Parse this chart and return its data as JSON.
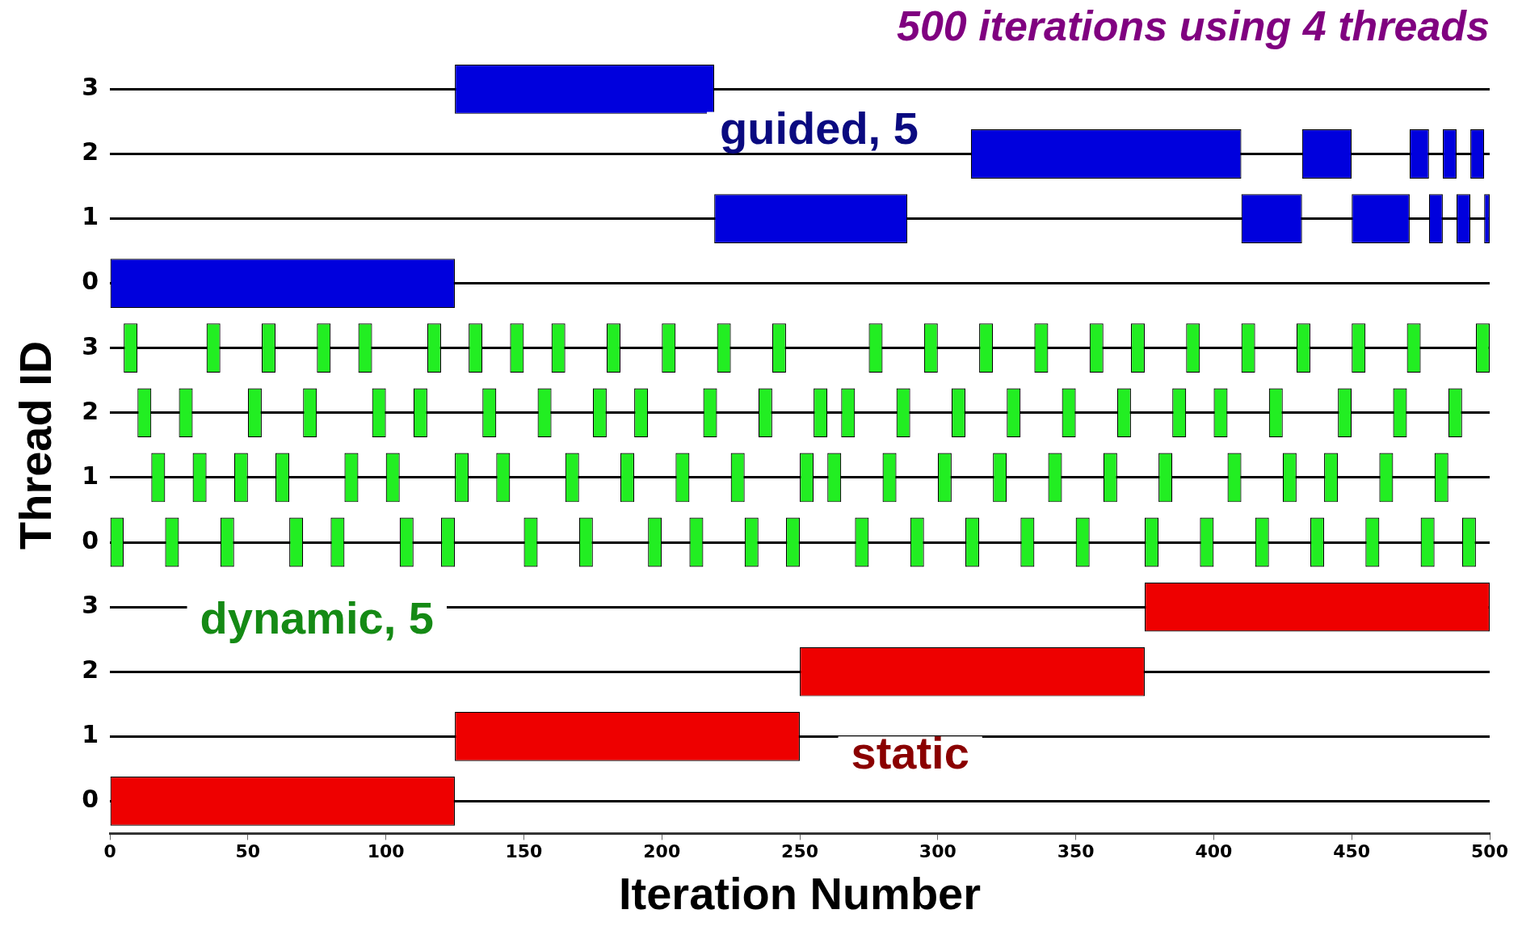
{
  "chart_data": {
    "type": "bar",
    "orientation": "horizontal",
    "title": "500 iterations using 4 threads",
    "xlabel": "Iteration Number",
    "ylabel": "Thread ID",
    "categories": [
      "3",
      "2",
      "1",
      "0",
      "3",
      "2",
      "1",
      "0",
      "3",
      "2",
      "1",
      "0"
    ],
    "xlim": [
      0,
      500
    ],
    "xticks": [
      0,
      50,
      100,
      150,
      200,
      250,
      300,
      350,
      400,
      450,
      500
    ],
    "grid": "y",
    "annotations": [
      "guided, 5",
      "dynamic, 5",
      "static"
    ],
    "series": [
      {
        "color": "#0000dd",
        "base": [
          125,
          null,
          219,
          0,
          null,
          null,
          null,
          null,
          null,
          null,
          null,
          null
        ],
        "values": [
          94,
          null,
          70,
          125,
          null,
          null,
          null,
          null,
          null,
          null,
          null,
          null
        ]
      },
      {
        "color": "#0000dd",
        "base": [
          null,
          312,
          410,
          null,
          null,
          null,
          null,
          null,
          null,
          null,
          null,
          null
        ],
        "values": [
          null,
          98,
          22,
          null,
          null,
          null,
          null,
          null,
          null,
          null,
          null,
          null
        ]
      },
      {
        "color": "#0000dd",
        "base": [
          null,
          432,
          450,
          null,
          null,
          null,
          null,
          null,
          null,
          null,
          null,
          null
        ],
        "values": [
          null,
          18,
          21,
          null,
          null,
          null,
          null,
          null,
          null,
          null,
          null,
          null
        ]
      },
      {
        "color": "#0000dd",
        "base": [
          null,
          471,
          478,
          null,
          null,
          null,
          null,
          null,
          null,
          null,
          null,
          null
        ],
        "values": [
          null,
          7,
          5,
          null,
          null,
          null,
          null,
          null,
          null,
          null,
          null,
          null
        ]
      },
      {
        "color": "#0000dd",
        "base": [
          null,
          483,
          488,
          null,
          null,
          null,
          null,
          null,
          null,
          null,
          null,
          null
        ],
        "values": [
          null,
          5,
          5,
          null,
          null,
          null,
          null,
          null,
          null,
          null,
          null,
          null
        ]
      },
      {
        "color": "#0000dd",
        "base": [
          null,
          493,
          498,
          null,
          null,
          null,
          null,
          null,
          null,
          null,
          null,
          null
        ],
        "values": [
          null,
          5,
          2,
          null,
          null,
          null,
          null,
          null,
          null,
          null,
          null,
          null
        ]
      },
      {
        "color": "#22ee22",
        "base": [
          null,
          null,
          null,
          null,
          5,
          10,
          15,
          0,
          null,
          null,
          null,
          null
        ],
        "values": [
          null,
          null,
          null,
          null,
          5,
          5,
          5,
          5,
          null,
          null,
          null,
          null
        ]
      },
      {
        "color": "#22ee22",
        "base": [
          null,
          null,
          null,
          null,
          35,
          25,
          30,
          20,
          null,
          null,
          null,
          null
        ],
        "values": [
          null,
          null,
          null,
          null,
          5,
          5,
          5,
          5,
          null,
          null,
          null,
          null
        ]
      },
      {
        "color": "#22ee22",
        "base": [
          null,
          null,
          null,
          null,
          55,
          50,
          45,
          40,
          null,
          null,
          null,
          null
        ],
        "values": [
          null,
          null,
          null,
          null,
          5,
          5,
          5,
          5,
          null,
          null,
          null,
          null
        ]
      },
      {
        "color": "#22ee22",
        "base": [
          null,
          null,
          null,
          null,
          75,
          70,
          60,
          65,
          null,
          null,
          null,
          null
        ],
        "values": [
          null,
          null,
          null,
          null,
          5,
          5,
          5,
          5,
          null,
          null,
          null,
          null
        ]
      },
      {
        "color": "#22ee22",
        "base": [
          null,
          null,
          null,
          null,
          90,
          95,
          85,
          80,
          null,
          null,
          null,
          null
        ],
        "values": [
          null,
          null,
          null,
          null,
          5,
          5,
          5,
          5,
          null,
          null,
          null,
          null
        ]
      },
      {
        "color": "#22ee22",
        "base": [
          null,
          null,
          null,
          null,
          115,
          110,
          100,
          105,
          null,
          null,
          null,
          null
        ],
        "values": [
          null,
          null,
          null,
          null,
          5,
          5,
          5,
          5,
          null,
          null,
          null,
          null
        ]
      },
      {
        "color": "#22ee22",
        "base": [
          null,
          null,
          null,
          null,
          130,
          135,
          125,
          120,
          null,
          null,
          null,
          null
        ],
        "values": [
          null,
          null,
          null,
          null,
          5,
          5,
          5,
          5,
          null,
          null,
          null,
          null
        ]
      },
      {
        "color": "#22ee22",
        "base": [
          null,
          null,
          null,
          null,
          145,
          155,
          140,
          150,
          null,
          null,
          null,
          null
        ],
        "values": [
          null,
          null,
          null,
          null,
          5,
          5,
          5,
          5,
          null,
          null,
          null,
          null
        ]
      },
      {
        "color": "#22ee22",
        "base": [
          null,
          null,
          null,
          null,
          160,
          175,
          165,
          170,
          null,
          null,
          null,
          null
        ],
        "values": [
          null,
          null,
          null,
          null,
          5,
          5,
          5,
          5,
          null,
          null,
          null,
          null
        ]
      },
      {
        "color": "#22ee22",
        "base": [
          null,
          null,
          null,
          null,
          180,
          190,
          185,
          195,
          null,
          null,
          null,
          null
        ],
        "values": [
          null,
          null,
          null,
          null,
          5,
          5,
          5,
          5,
          null,
          null,
          null,
          null
        ]
      },
      {
        "color": "#22ee22",
        "base": [
          null,
          null,
          null,
          null,
          200,
          215,
          205,
          210,
          null,
          null,
          null,
          null
        ],
        "values": [
          null,
          null,
          null,
          null,
          5,
          5,
          5,
          5,
          null,
          null,
          null,
          null
        ]
      },
      {
        "color": "#22ee22",
        "base": [
          null,
          null,
          null,
          null,
          220,
          235,
          225,
          230,
          null,
          null,
          null,
          null
        ],
        "values": [
          null,
          null,
          null,
          null,
          5,
          5,
          5,
          5,
          null,
          null,
          null,
          null
        ]
      },
      {
        "color": "#22ee22",
        "base": [
          null,
          null,
          null,
          null,
          240,
          255,
          250,
          245,
          null,
          null,
          null,
          null
        ],
        "values": [
          null,
          null,
          null,
          null,
          5,
          5,
          5,
          5,
          null,
          null,
          null,
          null
        ]
      },
      {
        "color": "#22ee22",
        "base": [
          null,
          null,
          null,
          null,
          275,
          265,
          260,
          270,
          null,
          null,
          null,
          null
        ],
        "values": [
          null,
          null,
          null,
          null,
          5,
          5,
          5,
          5,
          null,
          null,
          null,
          null
        ]
      },
      {
        "color": "#22ee22",
        "base": [
          null,
          null,
          null,
          null,
          295,
          285,
          280,
          290,
          null,
          null,
          null,
          null
        ],
        "values": [
          null,
          null,
          null,
          null,
          5,
          5,
          5,
          5,
          null,
          null,
          null,
          null
        ]
      },
      {
        "color": "#22ee22",
        "base": [
          null,
          null,
          null,
          null,
          315,
          305,
          300,
          310,
          null,
          null,
          null,
          null
        ],
        "values": [
          null,
          null,
          null,
          null,
          5,
          5,
          5,
          5,
          null,
          null,
          null,
          null
        ]
      },
      {
        "color": "#22ee22",
        "base": [
          null,
          null,
          null,
          null,
          335,
          325,
          320,
          330,
          null,
          null,
          null,
          null
        ],
        "values": [
          null,
          null,
          null,
          null,
          5,
          5,
          5,
          5,
          null,
          null,
          null,
          null
        ]
      },
      {
        "color": "#22ee22",
        "base": [
          null,
          null,
          null,
          null,
          355,
          345,
          340,
          350,
          null,
          null,
          null,
          null
        ],
        "values": [
          null,
          null,
          null,
          null,
          5,
          5,
          5,
          5,
          null,
          null,
          null,
          null
        ]
      },
      {
        "color": "#22ee22",
        "base": [
          null,
          null,
          null,
          null,
          370,
          365,
          360,
          375,
          null,
          null,
          null,
          null
        ],
        "values": [
          null,
          null,
          null,
          null,
          5,
          5,
          5,
          5,
          null,
          null,
          null,
          null
        ]
      },
      {
        "color": "#22ee22",
        "base": [
          null,
          null,
          null,
          null,
          390,
          385,
          380,
          395,
          null,
          null,
          null,
          null
        ],
        "values": [
          null,
          null,
          null,
          null,
          5,
          5,
          5,
          5,
          null,
          null,
          null,
          null
        ]
      },
      {
        "color": "#22ee22",
        "base": [
          null,
          null,
          null,
          null,
          410,
          400,
          405,
          415,
          null,
          null,
          null,
          null
        ],
        "values": [
          null,
          null,
          null,
          null,
          5,
          5,
          5,
          5,
          null,
          null,
          null,
          null
        ]
      },
      {
        "color": "#22ee22",
        "base": [
          null,
          null,
          null,
          null,
          430,
          420,
          425,
          435,
          null,
          null,
          null,
          null
        ],
        "values": [
          null,
          null,
          null,
          null,
          5,
          5,
          5,
          5,
          null,
          null,
          null,
          null
        ]
      },
      {
        "color": "#22ee22",
        "base": [
          null,
          null,
          null,
          null,
          450,
          445,
          440,
          455,
          null,
          null,
          null,
          null
        ],
        "values": [
          null,
          null,
          null,
          null,
          5,
          5,
          5,
          5,
          null,
          null,
          null,
          null
        ]
      },
      {
        "color": "#22ee22",
        "base": [
          null,
          null,
          null,
          null,
          470,
          465,
          460,
          475,
          null,
          null,
          null,
          null
        ],
        "values": [
          null,
          null,
          null,
          null,
          5,
          5,
          5,
          5,
          null,
          null,
          null,
          null
        ]
      },
      {
        "color": "#22ee22",
        "base": [
          null,
          null,
          null,
          null,
          495,
          485,
          480,
          490,
          null,
          null,
          null,
          null
        ],
        "values": [
          null,
          null,
          null,
          null,
          5,
          5,
          5,
          5,
          null,
          null,
          null,
          null
        ]
      },
      {
        "color": "#ee0000",
        "base": [
          null,
          null,
          null,
          null,
          null,
          null,
          null,
          null,
          375,
          250,
          125,
          0
        ],
        "values": [
          null,
          null,
          null,
          null,
          null,
          null,
          null,
          null,
          125,
          125,
          125,
          125
        ]
      }
    ]
  }
}
